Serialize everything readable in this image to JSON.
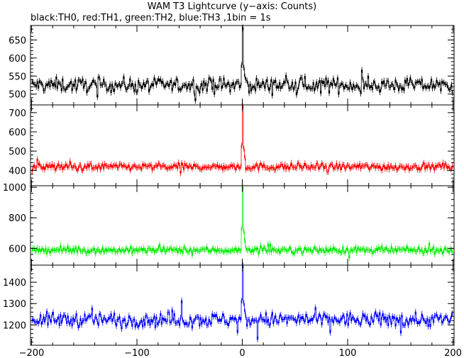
{
  "title": "WAM T3 Lightcurve (y−axis: Counts)",
  "subtitle": "black:TH0, red:TH1, green:TH2, blue:TH3 ,1bin = 1s",
  "chart_data": [
    {
      "type": "line",
      "series": [
        {
          "name": "TH0",
          "color": "#000000",
          "baseline": 525,
          "noise": 26,
          "peak": 685
        }
      ],
      "xlim": [
        -201,
        201
      ],
      "ylim": [
        470,
        690
      ],
      "yticks": [
        500,
        550,
        600,
        650
      ],
      "xticks": [
        -200,
        -100,
        0,
        100,
        200
      ],
      "show_x_tick_labels": false
    },
    {
      "type": "line",
      "series": [
        {
          "name": "TH1",
          "color": "#ff0000",
          "baseline": 418,
          "noise": 25,
          "peak": 735
        }
      ],
      "xlim": [
        -201,
        201
      ],
      "ylim": [
        320,
        740
      ],
      "yticks": [
        400,
        500,
        600,
        700
      ],
      "xticks": [
        -200,
        -100,
        0,
        100,
        200
      ],
      "show_x_tick_labels": false
    },
    {
      "type": "line",
      "series": [
        {
          "name": "TH2",
          "color": "#00ee00",
          "baseline": 588,
          "noise": 28,
          "peak": 1000
        }
      ],
      "xlim": [
        -201,
        201
      ],
      "ylim": [
        490,
        1010
      ],
      "yticks": [
        600,
        800,
        1000
      ],
      "xticks": [
        -200,
        -100,
        0,
        100,
        200
      ],
      "show_x_tick_labels": false
    },
    {
      "type": "line",
      "series": [
        {
          "name": "TH3",
          "color": "#0000ff",
          "baseline": 1225,
          "noise": 45,
          "peak": 1480
        }
      ],
      "xlim": [
        -201,
        201
      ],
      "ylim": [
        1105,
        1480
      ],
      "yticks": [
        1200,
        1300,
        1400
      ],
      "xticks": [
        -200,
        -100,
        0,
        100,
        200
      ],
      "show_x_tick_labels": true
    }
  ],
  "colors": {
    "axis": "#000000"
  }
}
